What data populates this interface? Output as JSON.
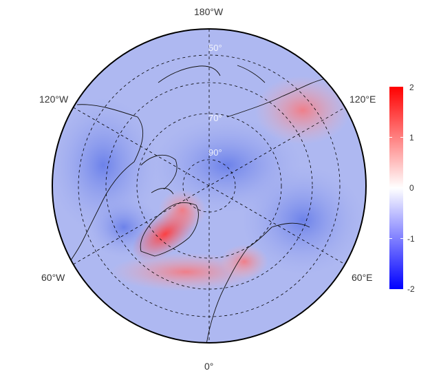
{
  "map": {
    "projection": "north-polar-stereographic",
    "longitude_labels": {
      "top": "180°W",
      "bottom": "0°",
      "upper_left": "120°W",
      "upper_right": "120°E",
      "lower_left": "60°W",
      "lower_right": "60°E"
    },
    "latitude_labels": [
      "90°",
      "70°",
      "50°"
    ],
    "gridlines": "dashed",
    "field_features": [
      {
        "region": "greenland-west",
        "sign": "positive",
        "intensity": 1.6
      },
      {
        "region": "greenland-east",
        "sign": "positive",
        "intensity": 1.2
      },
      {
        "region": "north-atlantic-band",
        "sign": "positive",
        "intensity": 0.7
      },
      {
        "region": "east-siberia",
        "sign": "positive",
        "intensity": 0.8
      },
      {
        "region": "scandinavia",
        "sign": "positive",
        "intensity": 0.6
      },
      {
        "region": "arctic-ocean",
        "sign": "negative",
        "intensity": -0.8
      },
      {
        "region": "north-america",
        "sign": "negative",
        "intensity": -0.7
      },
      {
        "region": "baffin-labrador",
        "sign": "negative",
        "intensity": -0.8
      },
      {
        "region": "eurasia-interior",
        "sign": "negative",
        "intensity": -0.6
      }
    ]
  },
  "colorbar": {
    "ticks": [
      "2",
      "1",
      "0",
      "-1",
      "-2"
    ],
    "colors": {
      "max": "#ff0000",
      "mid": "#ffffff",
      "min": "#0000ff"
    }
  }
}
